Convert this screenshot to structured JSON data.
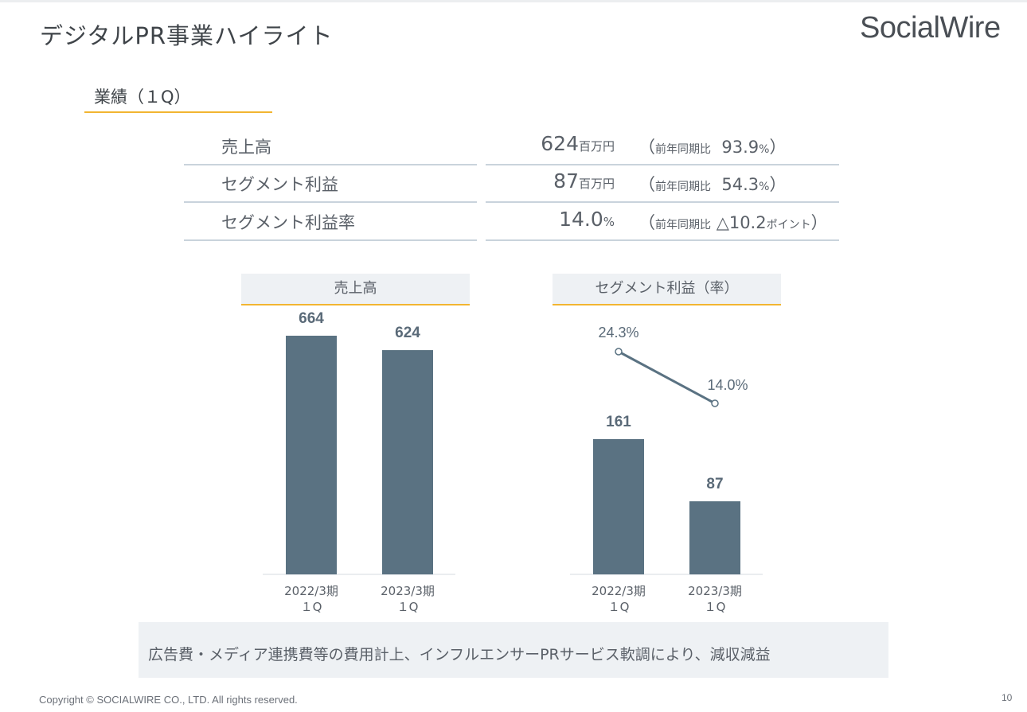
{
  "header": {
    "title": "デジタルPR事業ハイライト",
    "logo": "SocialWire"
  },
  "section": {
    "label": "業績（１Q）"
  },
  "kpis": [
    {
      "label": "売上高",
      "value": "624",
      "unit": "百万円",
      "yoy_open": "（",
      "yoy_prefix": "前年同期比",
      "yoy_value": "93.9",
      "yoy_unit": "%",
      "yoy_close": "）"
    },
    {
      "label": "セグメント利益",
      "value": "87",
      "unit": "百万円",
      "yoy_open": "（",
      "yoy_prefix": "前年同期比",
      "yoy_value": "54.3",
      "yoy_unit": "%",
      "yoy_close": "）"
    },
    {
      "label": "セグメント利益率",
      "value": "14.0",
      "unit": "%",
      "yoy_open": "（",
      "yoy_prefix": "前年同期比",
      "yoy_value": "△10.2",
      "yoy_unit": "ポイント",
      "yoy_close": "）"
    }
  ],
  "chart_data": [
    {
      "type": "bar",
      "title": "売上高",
      "categories": [
        "2022/3期\n１Q",
        "2023/3期\n１Q"
      ],
      "values": [
        664,
        624
      ],
      "value_labels": [
        "664",
        "624"
      ],
      "color": "#5a7282",
      "ylim": [
        0,
        700
      ]
    },
    {
      "type": "bar",
      "title": "セグメント利益（率）",
      "categories": [
        "2022/3期\n１Q",
        "2023/3期\n１Q"
      ],
      "values": [
        161,
        87
      ],
      "value_labels": [
        "161",
        "87"
      ],
      "color": "#5a7282",
      "ylim": [
        0,
        170
      ],
      "line_series": {
        "values": [
          24.3,
          14.0
        ],
        "labels": [
          "24.3%",
          "14.0%"
        ],
        "ylim": [
          0,
          30
        ],
        "color": "#5a7282"
      }
    }
  ],
  "note": "広告費・メディア連携費等の費用計上、インフルエンサーPRサービス軟調により、減収減益",
  "footer": {
    "copyright": "Copyright © SOCIALWIRE CO., LTD. All rights reserved.",
    "page": "10"
  }
}
